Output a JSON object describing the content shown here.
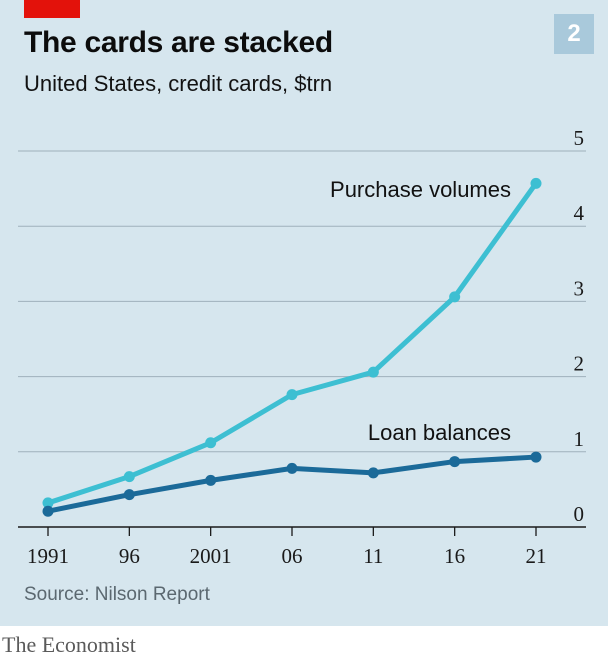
{
  "header": {
    "title": "The cards are stacked",
    "subtitle": "United States, credit cards, $trn",
    "chart_number": "2"
  },
  "footer": {
    "source": "Source: Nilson Report",
    "brand": "The Economist"
  },
  "colors": {
    "purchase": "#3dbfd2",
    "loan": "#1b6a99",
    "grid": "#9fb0bb",
    "axis": "#1a1a1a",
    "background": "#d6e6ee",
    "accent_red": "#e3120b"
  },
  "chart_data": {
    "type": "line",
    "x": [
      1991,
      1996,
      2001,
      2006,
      2011,
      2016,
      2021
    ],
    "x_tick_labels": [
      "1991",
      "96",
      "2001",
      "06",
      "11",
      "16",
      "21"
    ],
    "y_ticks": [
      0,
      1,
      2,
      3,
      4,
      5
    ],
    "y_tick_labels": [
      "0",
      "1",
      "2",
      "3",
      "4",
      "5"
    ],
    "ylim": [
      0,
      5
    ],
    "y_axis_position": "right",
    "grid": true,
    "series": [
      {
        "name": "Purchase volumes",
        "values": [
          0.32,
          0.67,
          1.12,
          1.76,
          2.06,
          3.06,
          4.57
        ]
      },
      {
        "name": "Loan balances",
        "values": [
          0.21,
          0.43,
          0.62,
          0.78,
          0.72,
          0.87,
          0.93
        ]
      }
    ]
  }
}
